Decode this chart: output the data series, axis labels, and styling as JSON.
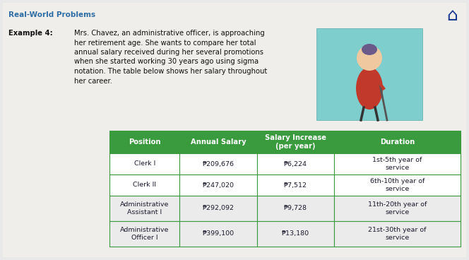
{
  "bg_color": "#e8e8e8",
  "content_bg": "#f0eeeb",
  "title": "Real-World Problems",
  "title_color": "#2e6da4",
  "title_fontsize": 7.5,
  "example_label": "Example 4:",
  "example_text_lines": [
    "Mrs. Chavez, an administrative officer, is approaching",
    "her retirement age. She wants to compare her total",
    "annual salary received during her several promotions",
    "when she started working 30 years ago using sigma",
    "notation. The table below shows her salary throughout",
    "her career."
  ],
  "example_fontsize": 7.2,
  "table_header": [
    "Position",
    "Annual Salary",
    "Salary Increase\n(per year)",
    "Duration"
  ],
  "table_header_bg": "#3a9a3e",
  "table_row_bg_1": "#ffffff",
  "table_row_bg_2": "#ebebeb",
  "table_border_color": "#3a9a3e",
  "table_text_color": "#1a1a2e",
  "table_header_color": "#ffffff",
  "table_rows": [
    [
      "Clerk I",
      "₱209,676",
      "₱6,224",
      "1st-5th year of\nservice"
    ],
    [
      "Clerk II",
      "₱247,020",
      "₱7,512",
      "6th-10th year of\nservice"
    ],
    [
      "Administrative\nAssistant I",
      "₱292,092",
      "₱9,728",
      "11th-20th year of\nservice"
    ],
    [
      "Administrative\nOfficer I",
      "₱399,100",
      "₱13,180",
      "21st-30th year of\nservice"
    ]
  ],
  "cell_fontsize": 6.8,
  "header_fontsize": 7.2,
  "img_bg": "#7ecece",
  "img_label_color": "#8b3a0f",
  "home_icon_color": "#1a3a8f"
}
